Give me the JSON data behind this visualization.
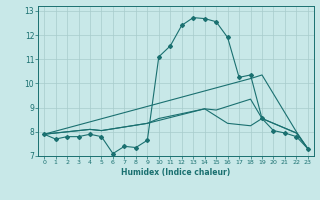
{
  "xlabel": "Humidex (Indice chaleur)",
  "bg_color": "#c8e8e8",
  "line_color": "#1a7070",
  "grid_color": "#a8cccc",
  "xlim": [
    -0.5,
    23.5
  ],
  "ylim": [
    7,
    13.2
  ],
  "yticks": [
    7,
    8,
    9,
    10,
    11,
    12,
    13
  ],
  "xticks": [
    0,
    1,
    2,
    3,
    4,
    5,
    6,
    7,
    8,
    9,
    10,
    11,
    12,
    13,
    14,
    15,
    16,
    17,
    18,
    19,
    20,
    21,
    22,
    23
  ],
  "line1_x": [
    0,
    1,
    2,
    3,
    4,
    5,
    6,
    7,
    8,
    9,
    10,
    11,
    12,
    13,
    14,
    15,
    16,
    17,
    18,
    19,
    20,
    21,
    22,
    23
  ],
  "line1_y": [
    7.9,
    7.7,
    7.8,
    7.8,
    7.9,
    7.8,
    7.1,
    7.4,
    7.35,
    7.65,
    11.1,
    11.55,
    12.4,
    12.72,
    12.68,
    12.55,
    11.9,
    10.25,
    10.35,
    8.55,
    8.05,
    7.95,
    7.8,
    7.3
  ],
  "line2_x": [
    0,
    18,
    19,
    22,
    23
  ],
  "line2_y": [
    7.9,
    10.2,
    10.35,
    8.0,
    7.3
  ],
  "line3_x": [
    0,
    4,
    5,
    9,
    10,
    14,
    15,
    16,
    17,
    18,
    19,
    22,
    23
  ],
  "line3_y": [
    7.9,
    8.1,
    8.05,
    8.35,
    8.55,
    8.95,
    8.9,
    9.05,
    9.2,
    9.35,
    8.55,
    7.95,
    7.3
  ],
  "line4_x": [
    0,
    4,
    5,
    9,
    14,
    16,
    17,
    18,
    19,
    22,
    23
  ],
  "line4_y": [
    7.9,
    8.1,
    8.05,
    8.35,
    8.95,
    8.35,
    8.3,
    8.25,
    8.55,
    7.95,
    7.3
  ]
}
